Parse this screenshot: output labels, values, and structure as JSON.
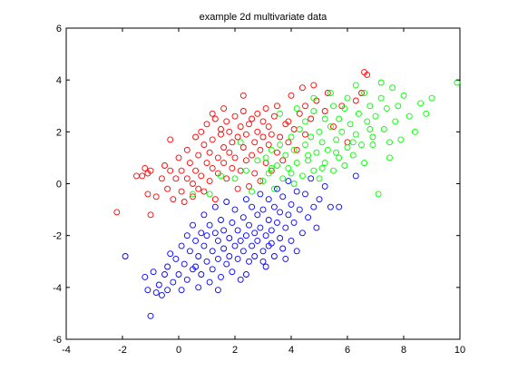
{
  "chart_data": {
    "type": "scatter",
    "title": "example 2d multivariate data",
    "xlabel": "",
    "ylabel": "",
    "xlim": [
      -4,
      10
    ],
    "ylim": [
      -6,
      6
    ],
    "xticks": [
      -4,
      -2,
      0,
      2,
      4,
      6,
      8,
      10
    ],
    "yticks": [
      -6,
      -4,
      -2,
      0,
      2,
      4,
      6
    ],
    "grid": false,
    "marker": "open-circle",
    "series": [
      {
        "color": "#ff0000",
        "points": [
          [
            -2.2,
            -1.1
          ],
          [
            -1.5,
            0.3
          ],
          [
            -1.3,
            0.3
          ],
          [
            -1.2,
            0.6
          ],
          [
            -1.1,
            0.4
          ],
          [
            -1.0,
            0.5
          ],
          [
            -1.1,
            -0.4
          ],
          [
            -1.0,
            -1.2
          ],
          [
            -0.8,
            -0.5
          ],
          [
            -0.6,
            0.2
          ],
          [
            -0.5,
            0.7
          ],
          [
            -0.4,
            -0.2
          ],
          [
            -0.3,
            0.5
          ],
          [
            -0.2,
            -0.6
          ],
          [
            -0.1,
            0.2
          ],
          [
            0.0,
            1.0
          ],
          [
            0.1,
            0.5
          ],
          [
            0.1,
            -0.3
          ],
          [
            0.2,
            -0.7
          ],
          [
            0.3,
            1.3
          ],
          [
            0.3,
            0.2
          ],
          [
            0.4,
            0.8
          ],
          [
            0.5,
            -0.5
          ],
          [
            0.5,
            0.0
          ],
          [
            0.6,
            1.8
          ],
          [
            0.6,
            0.5
          ],
          [
            0.7,
            -0.2
          ],
          [
            0.7,
            1.1
          ],
          [
            0.8,
            2.0
          ],
          [
            0.8,
            0.3
          ],
          [
            0.9,
            1.5
          ],
          [
            0.9,
            -0.3
          ],
          [
            1.0,
            0.8
          ],
          [
            1.0,
            2.3
          ],
          [
            1.1,
            1.2
          ],
          [
            1.1,
            0.1
          ],
          [
            1.2,
            1.7
          ],
          [
            1.2,
            0.6
          ],
          [
            1.3,
            2.5
          ],
          [
            1.3,
            -0.6
          ],
          [
            1.4,
            1.0
          ],
          [
            1.4,
            0.4
          ],
          [
            1.5,
            1.9
          ],
          [
            1.5,
            2.1
          ],
          [
            1.6,
            0.8
          ],
          [
            1.6,
            1.4
          ],
          [
            1.7,
            2.4
          ],
          [
            1.7,
            0.2
          ],
          [
            1.8,
            1.2
          ],
          [
            1.8,
            2.0
          ],
          [
            1.9,
            0.6
          ],
          [
            1.9,
            1.6
          ],
          [
            2.0,
            2.6
          ],
          [
            2.0,
            1.0
          ],
          [
            2.1,
            -0.2
          ],
          [
            2.1,
            1.8
          ],
          [
            2.2,
            2.2
          ],
          [
            2.2,
            0.5
          ],
          [
            2.3,
            1.4
          ],
          [
            2.3,
            2.8
          ],
          [
            2.4,
            0.9
          ],
          [
            2.4,
            1.9
          ],
          [
            2.5,
            2.3
          ],
          [
            2.5,
            -0.1
          ],
          [
            2.6,
            1.1
          ],
          [
            2.6,
            2.5
          ],
          [
            2.7,
            1.6
          ],
          [
            2.7,
            0.4
          ],
          [
            2.8,
            2.0
          ],
          [
            2.8,
            2.7
          ],
          [
            2.9,
            1.3
          ],
          [
            2.9,
            0.1
          ],
          [
            3.0,
            2.4
          ],
          [
            3.0,
            1.8
          ],
          [
            3.1,
            0.8
          ],
          [
            3.1,
            2.9
          ],
          [
            3.2,
            1.5
          ],
          [
            3.2,
            2.2
          ],
          [
            3.3,
            0.5
          ],
          [
            3.3,
            1.9
          ],
          [
            3.4,
            2.6
          ],
          [
            3.5,
            1.2
          ],
          [
            3.5,
            3.0
          ],
          [
            3.6,
            1.8
          ],
          [
            3.7,
            0.9
          ],
          [
            3.8,
            2.3
          ],
          [
            3.9,
            1.6
          ],
          [
            4.0,
            3.4
          ],
          [
            4.1,
            2.1
          ],
          [
            4.2,
            1.3
          ],
          [
            4.3,
            2.7
          ],
          [
            4.5,
            3.0
          ],
          [
            4.7,
            2.5
          ],
          [
            4.9,
            3.2
          ],
          [
            4.5,
            1.9
          ],
          [
            5.2,
            2.8
          ],
          [
            5.5,
            2.2
          ],
          [
            5.8,
            3.0
          ],
          [
            6.0,
            1.6
          ],
          [
            6.3,
            3.2
          ],
          [
            6.6,
            4.3
          ],
          [
            6.7,
            4.2
          ],
          [
            6.5,
            3.5
          ],
          [
            5.3,
            3.5
          ],
          [
            4.8,
            3.8
          ],
          [
            4.4,
            3.7
          ],
          [
            3.9,
            2.4
          ],
          [
            2.3,
            3.4
          ],
          [
            1.6,
            2.9
          ],
          [
            1.2,
            2.7
          ],
          [
            -0.3,
            1.7
          ]
        ]
      },
      {
        "color": "#00ff00",
        "points": [
          [
            0.5,
            -0.4
          ],
          [
            1.1,
            -0.4
          ],
          [
            1.5,
            0.3
          ],
          [
            2.0,
            0.2
          ],
          [
            2.4,
            0.5
          ],
          [
            2.6,
            -0.3
          ],
          [
            2.8,
            0.9
          ],
          [
            3.0,
            0.1
          ],
          [
            3.1,
            1.0
          ],
          [
            3.2,
            0.4
          ],
          [
            3.3,
            1.3
          ],
          [
            3.4,
            -0.2
          ],
          [
            3.5,
            0.7
          ],
          [
            3.6,
            1.5
          ],
          [
            3.7,
            0.2
          ],
          [
            3.8,
            1.1
          ],
          [
            3.9,
            0.6
          ],
          [
            4.0,
            1.8
          ],
          [
            4.1,
            0.0
          ],
          [
            4.1,
            1.3
          ],
          [
            4.2,
            0.8
          ],
          [
            4.3,
            2.1
          ],
          [
            4.4,
            0.3
          ],
          [
            4.5,
            1.5
          ],
          [
            4.5,
            2.4
          ],
          [
            4.6,
            0.9
          ],
          [
            4.7,
            1.8
          ],
          [
            4.8,
            0.5
          ],
          [
            4.8,
            2.8
          ],
          [
            4.9,
            1.2
          ],
          [
            5.0,
            2.0
          ],
          [
            5.0,
            0.2
          ],
          [
            5.1,
            1.6
          ],
          [
            5.2,
            2.5
          ],
          [
            5.2,
            0.8
          ],
          [
            5.3,
            1.3
          ],
          [
            5.4,
            2.2
          ],
          [
            5.5,
            0.5
          ],
          [
            5.5,
            3.0
          ],
          [
            5.6,
            1.7
          ],
          [
            5.7,
            1.0
          ],
          [
            5.7,
            2.5
          ],
          [
            5.8,
            2.0
          ],
          [
            5.9,
            0.7
          ],
          [
            6.0,
            1.4
          ],
          [
            6.0,
            3.3
          ],
          [
            6.1,
            2.3
          ],
          [
            6.2,
            1.1
          ],
          [
            6.3,
            1.9
          ],
          [
            6.4,
            2.7
          ],
          [
            6.5,
            1.5
          ],
          [
            6.6,
            0.8
          ],
          [
            6.7,
            2.4
          ],
          [
            6.8,
            3.0
          ],
          [
            6.9,
            1.8
          ],
          [
            7.0,
            2.6
          ],
          [
            7.1,
            -0.4
          ],
          [
            7.2,
            3.3
          ],
          [
            7.3,
            2.1
          ],
          [
            7.4,
            2.9
          ],
          [
            7.5,
            1.6
          ],
          [
            7.6,
            3.7
          ],
          [
            7.7,
            2.4
          ],
          [
            7.8,
            3.0
          ],
          [
            7.9,
            1.7
          ],
          [
            8.0,
            3.4
          ],
          [
            8.2,
            2.6
          ],
          [
            8.4,
            2.0
          ],
          [
            8.6,
            3.1
          ],
          [
            8.8,
            2.7
          ],
          [
            9.0,
            3.3
          ],
          [
            9.9,
            3.9
          ],
          [
            7.5,
            1.0
          ],
          [
            6.9,
            1.5
          ],
          [
            5.4,
            3.5
          ],
          [
            4.8,
            3.3
          ],
          [
            4.2,
            2.9
          ],
          [
            3.6,
            2.7
          ],
          [
            2.2,
            1.6
          ],
          [
            6.3,
            3.8
          ],
          [
            7.2,
            3.9
          ],
          [
            5.9,
            2.9
          ],
          [
            6.6,
            3.5
          ],
          [
            4.0,
            0.4
          ],
          [
            3.3,
            0.6
          ],
          [
            5.1,
            0.6
          ],
          [
            4.6,
            1.1
          ],
          [
            5.6,
            1.2
          ],
          [
            6.2,
            1.6
          ],
          [
            6.8,
            2.1
          ]
        ]
      },
      {
        "color": "#0000ff",
        "points": [
          [
            -1.9,
            -2.8
          ],
          [
            -1.2,
            -3.6
          ],
          [
            -1.1,
            -4.1
          ],
          [
            -1.0,
            -5.1
          ],
          [
            -0.9,
            -3.4
          ],
          [
            -0.8,
            -4.2
          ],
          [
            -0.7,
            -3.9
          ],
          [
            -0.6,
            -4.3
          ],
          [
            -0.5,
            -3.5
          ],
          [
            -0.4,
            -3.2
          ],
          [
            -0.4,
            -4.1
          ],
          [
            -0.3,
            -2.7
          ],
          [
            -0.2,
            -3.8
          ],
          [
            -0.1,
            -2.9
          ],
          [
            0.0,
            -3.5
          ],
          [
            0.1,
            -4.1
          ],
          [
            0.1,
            -2.4
          ],
          [
            0.2,
            -3.1
          ],
          [
            0.3,
            -2.0
          ],
          [
            0.3,
            -3.7
          ],
          [
            0.4,
            -2.6
          ],
          [
            0.5,
            -1.6
          ],
          [
            0.5,
            -3.3
          ],
          [
            0.6,
            -2.2
          ],
          [
            0.7,
            -4.0
          ],
          [
            0.7,
            -2.8
          ],
          [
            0.8,
            -1.9
          ],
          [
            0.8,
            -3.5
          ],
          [
            0.9,
            -2.4
          ],
          [
            0.9,
            -1.2
          ],
          [
            1.0,
            -3.0
          ],
          [
            1.0,
            -2.0
          ],
          [
            1.1,
            -3.8
          ],
          [
            1.1,
            -1.6
          ],
          [
            1.2,
            -2.6
          ],
          [
            1.2,
            -3.3
          ],
          [
            1.3,
            -1.9
          ],
          [
            1.3,
            -0.9
          ],
          [
            1.4,
            -2.9
          ],
          [
            1.4,
            -2.2
          ],
          [
            1.5,
            -3.6
          ],
          [
            1.5,
            -1.4
          ],
          [
            1.6,
            -2.5
          ],
          [
            1.6,
            -1.8
          ],
          [
            1.7,
            -3.1
          ],
          [
            1.7,
            -0.7
          ],
          [
            1.8,
            -2.1
          ],
          [
            1.8,
            -2.8
          ],
          [
            1.9,
            -1.5
          ],
          [
            1.9,
            -3.4
          ],
          [
            2.0,
            -2.4
          ],
          [
            2.0,
            -1.0
          ],
          [
            2.1,
            -2.9
          ],
          [
            2.1,
            -1.8
          ],
          [
            2.2,
            -2.2
          ],
          [
            2.2,
            -3.7
          ],
          [
            2.3,
            -1.3
          ],
          [
            2.3,
            -2.6
          ],
          [
            2.4,
            -0.6
          ],
          [
            2.4,
            -2.0
          ],
          [
            2.5,
            -3.0
          ],
          [
            2.5,
            -1.6
          ],
          [
            2.6,
            -2.4
          ],
          [
            2.6,
            -0.9
          ],
          [
            2.7,
            -1.9
          ],
          [
            2.7,
            -2.8
          ],
          [
            2.8,
            -1.2
          ],
          [
            2.8,
            -2.2
          ],
          [
            2.9,
            -0.4
          ],
          [
            2.9,
            -1.7
          ],
          [
            3.0,
            -2.6
          ],
          [
            3.0,
            -1.0
          ],
          [
            3.1,
            -2.0
          ],
          [
            3.1,
            -3.2
          ],
          [
            3.2,
            -1.4
          ],
          [
            3.2,
            -0.6
          ],
          [
            3.3,
            -2.3
          ],
          [
            3.3,
            -1.8
          ],
          [
            3.4,
            -0.9
          ],
          [
            3.4,
            -2.8
          ],
          [
            3.5,
            -1.5
          ],
          [
            3.5,
            -0.2
          ],
          [
            3.6,
            -2.1
          ],
          [
            3.6,
            -1.1
          ],
          [
            3.7,
            -2.5
          ],
          [
            3.7,
            -0.5
          ],
          [
            3.8,
            -1.7
          ],
          [
            3.8,
            -2.9
          ],
          [
            3.9,
            -1.2
          ],
          [
            3.9,
            0.1
          ],
          [
            4.0,
            -2.2
          ],
          [
            4.0,
            -0.8
          ],
          [
            4.1,
            -1.5
          ],
          [
            4.2,
            -0.3
          ],
          [
            4.2,
            -2.6
          ],
          [
            4.3,
            -1.0
          ],
          [
            4.4,
            -1.9
          ],
          [
            4.5,
            -0.4
          ],
          [
            4.6,
            -1.3
          ],
          [
            4.7,
            0.2
          ],
          [
            4.8,
            -0.9
          ],
          [
            4.9,
            -1.7
          ],
          [
            5.0,
            -0.6
          ],
          [
            5.2,
            -0.1
          ],
          [
            5.4,
            -0.9
          ],
          [
            5.7,
            -0.9
          ],
          [
            6.3,
            0.3
          ],
          [
            3.0,
            -3.0
          ],
          [
            1.4,
            -4.1
          ],
          [
            0.6,
            -3.2
          ],
          [
            2.4,
            -3.5
          ],
          [
            3.2,
            -2.4
          ]
        ]
      }
    ]
  }
}
